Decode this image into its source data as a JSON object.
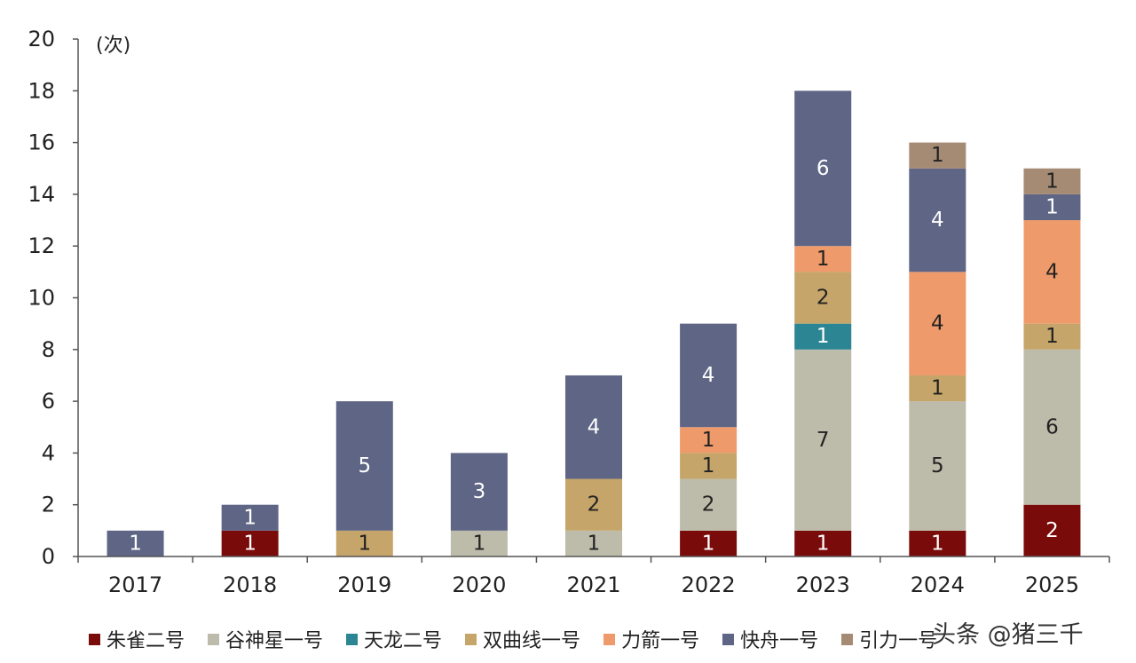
{
  "chart_data": {
    "type": "stacked-bar",
    "unit_label": "(次)",
    "ylim": [
      0,
      20
    ],
    "yticks": [
      "0",
      "2",
      "4",
      "6",
      "8",
      "10",
      "12",
      "14",
      "16",
      "18",
      "20"
    ],
    "categories": [
      "2017",
      "2018",
      "2019",
      "2020",
      "2021",
      "2022",
      "2023",
      "2024",
      "2025"
    ],
    "series": [
      {
        "name": "朱雀二号",
        "color": "#7a0b0b",
        "label_color": "#ffffff",
        "values": [
          0,
          1,
          0,
          0,
          0,
          1,
          1,
          1,
          2
        ]
      },
      {
        "name": "谷神星一号",
        "color": "#bdbcaa",
        "label_color": "#222222",
        "values": [
          0,
          0,
          0,
          1,
          1,
          2,
          7,
          5,
          6
        ]
      },
      {
        "name": "天龙二号",
        "color": "#2b8592",
        "label_color": "#ffffff",
        "values": [
          0,
          0,
          0,
          0,
          0,
          0,
          1,
          0,
          0
        ]
      },
      {
        "name": "双曲线一号",
        "color": "#c5a569",
        "label_color": "#222222",
        "values": [
          0,
          0,
          1,
          0,
          2,
          1,
          2,
          1,
          1
        ]
      },
      {
        "name": "力箭一号",
        "color": "#ee9a6a",
        "label_color": "#222222",
        "values": [
          0,
          0,
          0,
          0,
          0,
          1,
          1,
          4,
          4
        ]
      },
      {
        "name": "快舟一号",
        "color": "#5e6585",
        "label_color": "#ffffff",
        "values": [
          1,
          1,
          5,
          3,
          4,
          4,
          6,
          4,
          1
        ]
      },
      {
        "name": "引力一号",
        "color": "#a58b74",
        "label_color": "#222222",
        "values": [
          0,
          0,
          0,
          0,
          0,
          0,
          0,
          1,
          1
        ]
      }
    ],
    "legend_position": "bottom"
  },
  "legend": {
    "items": [
      {
        "label": "朱雀二号",
        "color": "#7a0b0b"
      },
      {
        "label": "谷神星一号",
        "color": "#bdbcaa"
      },
      {
        "label": "天龙二号",
        "color": "#2b8592"
      },
      {
        "label": "双曲线一号",
        "color": "#c5a569"
      },
      {
        "label": "力箭一号",
        "color": "#ee9a6a"
      },
      {
        "label": "快舟一号",
        "color": "#5e6585"
      },
      {
        "label": "引力一号",
        "color": "#a58b74"
      }
    ]
  },
  "watermark": "头条 @猪三千"
}
